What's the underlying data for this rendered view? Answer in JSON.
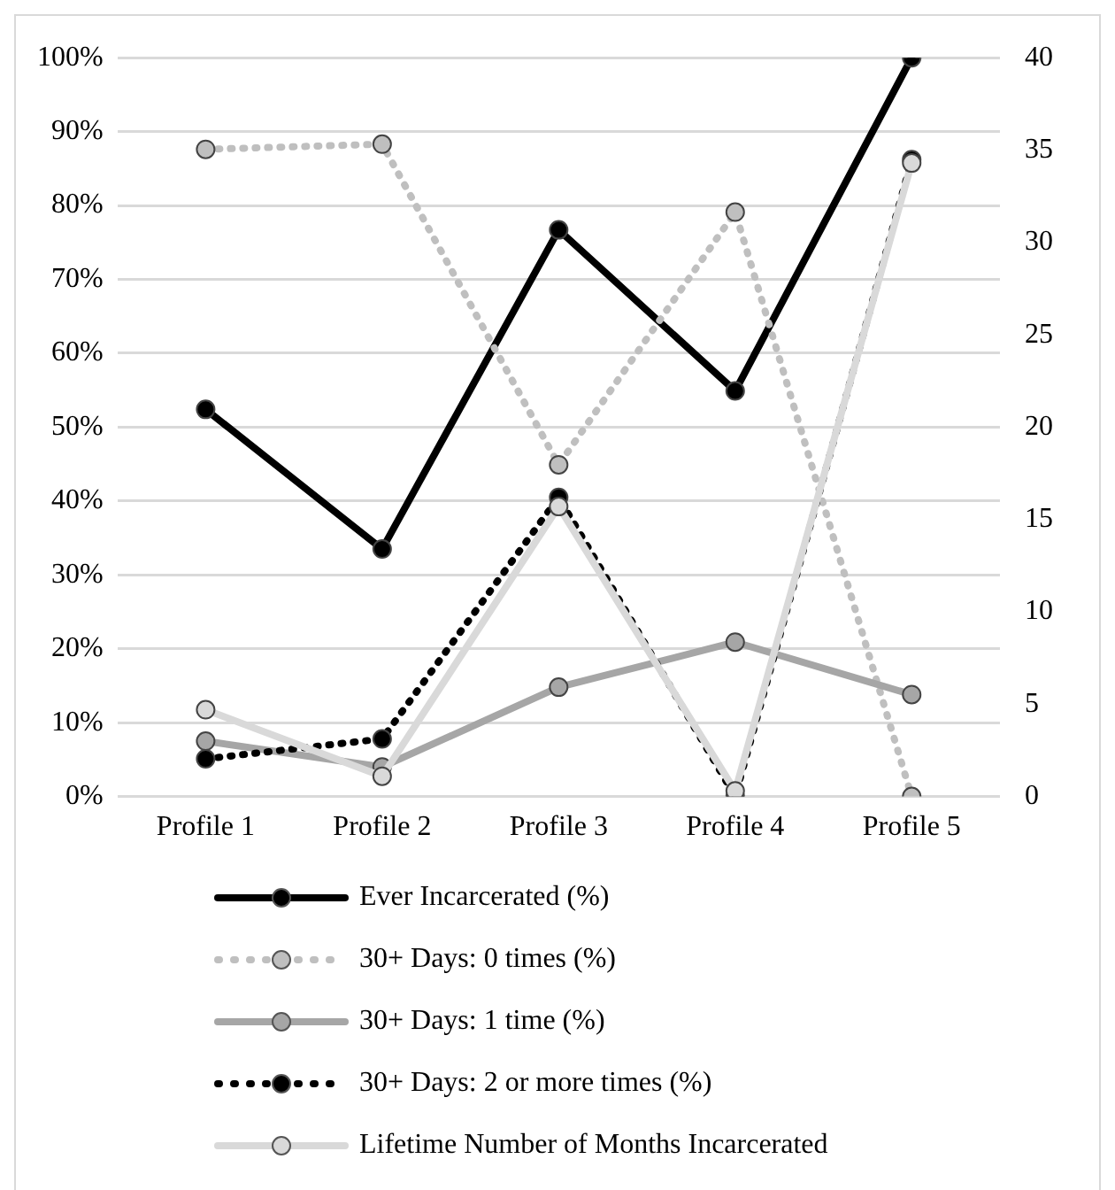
{
  "chart_data": {
    "type": "line",
    "categories": [
      "Profile 1",
      "Profile 2",
      "Profile 3",
      "Profile 4",
      "Profile 5"
    ],
    "series": [
      {
        "name": "Ever Incarcerated (%)",
        "color": "#000000",
        "line_style": "solid",
        "values": [
          52.4,
          33.5,
          76.7,
          54.9,
          100
        ]
      },
      {
        "name": "30+ Days: 0 times (%)",
        "color": "#bfbfbf",
        "line_style": "dotted",
        "values": [
          87.6,
          88.3,
          44.9,
          79.1,
          0
        ]
      },
      {
        "name": "30+ Days: 1 time (%)",
        "color": "#a6a6a6",
        "line_style": "solid",
        "values": [
          7.5,
          4,
          14.8,
          20.9,
          13.8
        ]
      },
      {
        "name": "30+ Days: 2 or more times (%)",
        "color": "#000000",
        "line_style": "dotted",
        "values": [
          5.1,
          7.8,
          40.5,
          0,
          86.2
        ]
      },
      {
        "name": "Lifetime Number of Months Incarcerated",
        "color": "#d9d9d9",
        "line_style": "solid",
        "axis": "y2",
        "values": [
          4.7,
          1.1,
          15.7,
          0.3,
          34.3
        ]
      }
    ],
    "ylim": [
      0,
      100
    ],
    "yticks": [
      {
        "value": 0,
        "label": "0%"
      },
      {
        "value": 10,
        "label": "10%"
      },
      {
        "value": 20,
        "label": "20%"
      },
      {
        "value": 30,
        "label": "30%"
      },
      {
        "value": 40,
        "label": "40%"
      },
      {
        "value": 50,
        "label": "50%"
      },
      {
        "value": 60,
        "label": "60%"
      },
      {
        "value": 70,
        "label": "70%"
      },
      {
        "value": 80,
        "label": "80%"
      },
      {
        "value": 90,
        "label": "90%"
      },
      {
        "value": 100,
        "label": "100%"
      }
    ],
    "y2lim": [
      0,
      40
    ],
    "y2ticks": [
      0,
      5,
      10,
      15,
      20,
      25,
      30,
      35,
      40
    ],
    "grid": "y",
    "legend": "bottom",
    "marker": "circle"
  }
}
